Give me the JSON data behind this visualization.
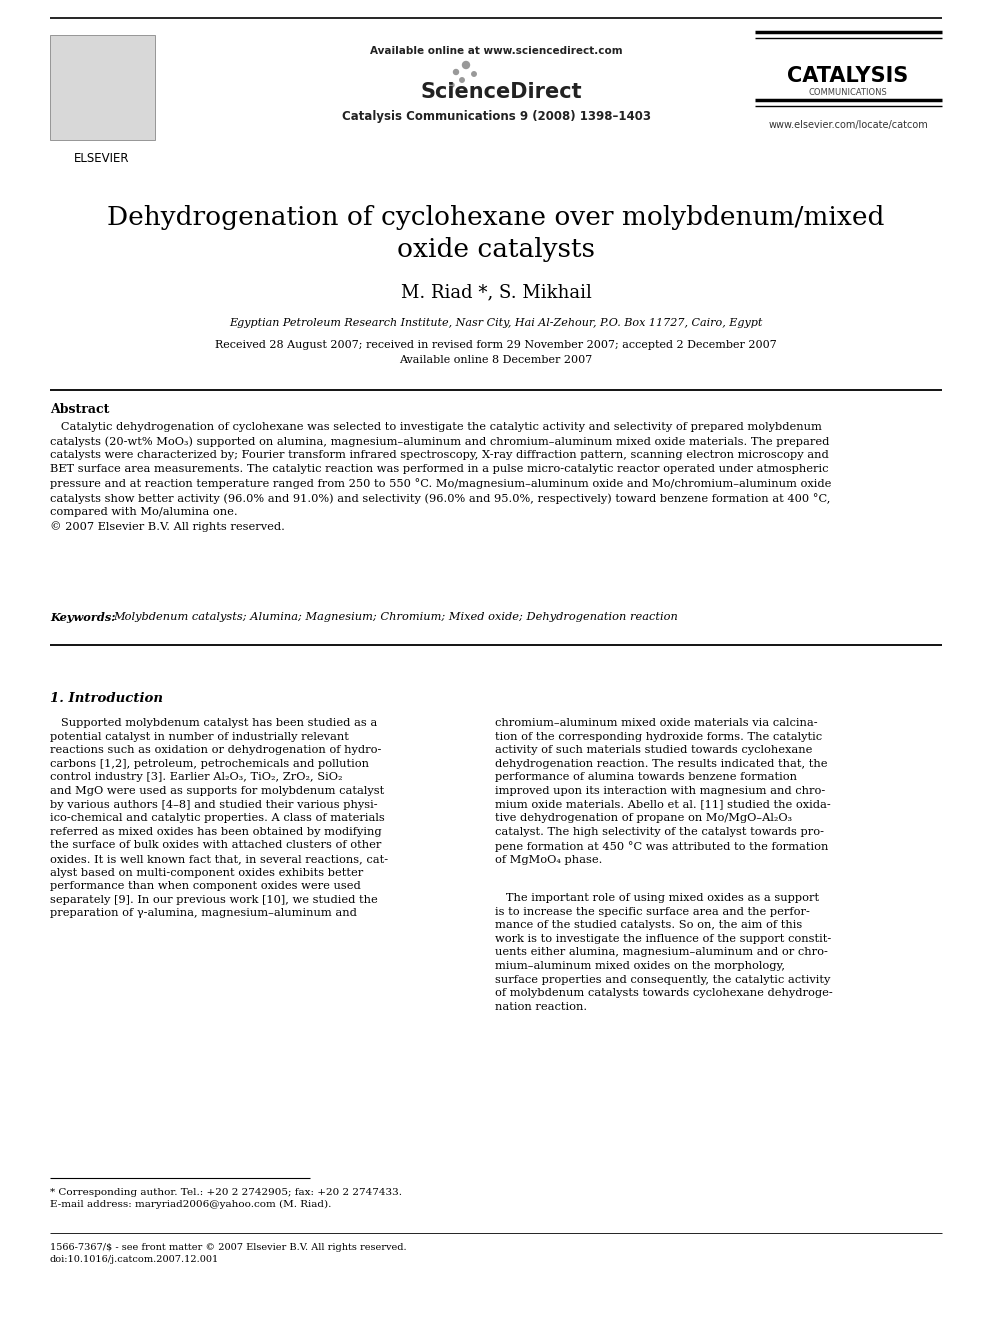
{
  "bg_color": "#ffffff",
  "header": {
    "available_text": "Available online at www.sciencedirect.com",
    "journal_line": "Catalysis Communications 9 (2008) 1398–1403",
    "elsevier_text": "ELSEVIER",
    "sciencedirect_text": "ScienceDirect",
    "catalysis_text": "CATALYSIS",
    "communications_text": "COMMUNICATIONS",
    "url_text": "www.elsevier.com/locate/catcom"
  },
  "title": "Dehydrogenation of cyclohexane over molybdenum/mixed\noxide catalysts",
  "authors": "M. Riad *, S. Mikhail",
  "affiliation": "Egyptian Petroleum Research Institute, Nasr City, Hai Al-Zehour, P.O. Box 11727, Cairo, Egypt",
  "dates": "Received 28 August 2007; received in revised form 29 November 2007; accepted 2 December 2007\nAvailable online 8 December 2007",
  "abstract_heading": "Abstract",
  "abstract_text": "   Catalytic dehydrogenation of cyclohexane was selected to investigate the catalytic activity and selectivity of prepared molybdenum\ncatalysts (20-wt% MoO₃) supported on alumina, magnesium–aluminum and chromium–aluminum mixed oxide materials. The prepared\ncatalysts were characterized by; Fourier transform infrared spectroscopy, X-ray diffraction pattern, scanning electron microscopy and\nBET surface area measurements. The catalytic reaction was performed in a pulse micro-catalytic reactor operated under atmospheric\npressure and at reaction temperature ranged from 250 to 550 °C. Mo/magnesium–aluminum oxide and Mo/chromium–aluminum oxide\ncatalysts show better activity (96.0% and 91.0%) and selectivity (96.0% and 95.0%, respectively) toward benzene formation at 400 °C,\ncompared with Mo/alumina one.\n© 2007 Elsevier B.V. All rights reserved.",
  "keywords_label": "Keywords: ",
  "keywords_text": "Molybdenum catalysts; Alumina; Magnesium; Chromium; Mixed oxide; Dehydrogenation reaction",
  "section1_heading": "1. Introduction",
  "col1_para1": "   Supported molybdenum catalyst has been studied as a\npotential catalyst in number of industrially relevant\nreactions such as oxidation or dehydrogenation of hydro-\ncarbons [1,2], petroleum, petrochemicals and pollution\ncontrol industry [3]. Earlier Al₂O₃, TiO₂, ZrO₂, SiO₂\nand MgO were used as supports for molybdenum catalyst\nby various authors [4–8] and studied their various physi-\nico-chemical and catalytic properties. A class of materials\nreferred as mixed oxides has been obtained by modifying\nthe surface of bulk oxides with attached clusters of other\noxides. It is well known fact that, in several reactions, cat-\nalyst based on multi-component oxides exhibits better\nperformance than when component oxides were used\nseparately [9]. In our previous work [10], we studied the\npreparation of γ-alumina, magnesium–aluminum and",
  "col2_para1": "chromium–aluminum mixed oxide materials via calcina-\ntion of the corresponding hydroxide forms. The catalytic\nactivity of such materials studied towards cyclohexane\ndehydrogenation reaction. The results indicated that, the\nperformance of alumina towards benzene formation\nimproved upon its interaction with magnesium and chro-\nmium oxide materials. Abello et al. [11] studied the oxida-\ntive dehydrogenation of propane on Mo/MgO–Al₂O₃\ncatalyst. The high selectivity of the catalyst towards pro-\npene formation at 450 °C was attributed to the formation\nof MgMoO₄ phase.",
  "col2_para2": "   The important role of using mixed oxides as a support\nis to increase the specific surface area and the perfor-\nmance of the studied catalysts. So on, the aim of this\nwork is to investigate the influence of the support constit-\nuents either alumina, magnesium–aluminum and or chro-\nmium–aluminum mixed oxides on the morphology,\nsurface properties and consequently, the catalytic activity\nof molybdenum catalysts towards cyclohexane dehydroge-\nnation reaction.",
  "footnote_star": "* Corresponding author. Tel.: +20 2 2742905; fax: +20 2 2747433.\nE-mail address: maryriad2006@yahoo.com (M. Riad).",
  "footnote_issn": "1566-7367/$ - see front matter © 2007 Elsevier B.V. All rights reserved.\ndoi:10.1016/j.catcom.2007.12.001"
}
